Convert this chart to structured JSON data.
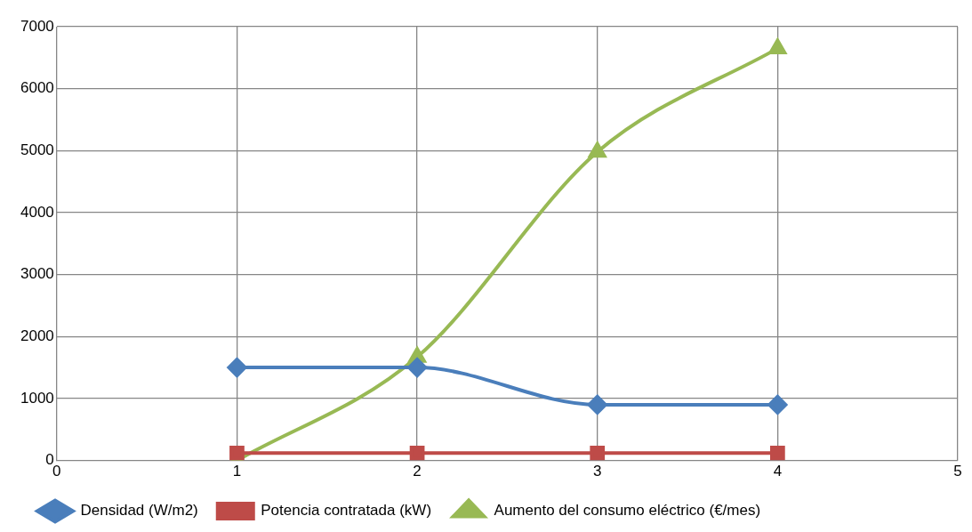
{
  "chart_data": {
    "type": "line",
    "x": [
      1,
      2,
      3,
      4
    ],
    "series": [
      {
        "name": "Densidad (W/m2)",
        "color": "#4a7ebb",
        "marker": "diamond",
        "values": [
          1500,
          1500,
          900,
          900
        ]
      },
      {
        "name": "Potencia contratada (kW)",
        "color": "#be4b48",
        "marker": "square",
        "values": [
          120,
          120,
          120,
          120
        ]
      },
      {
        "name": "Aumento del consumo eléctrico (€/mes)",
        "color": "#98b954",
        "marker": "triangle",
        "values": [
          0,
          1670,
          4980,
          6650
        ]
      }
    ],
    "xlim": [
      0,
      5
    ],
    "xticks": [
      0,
      1,
      2,
      3,
      4,
      5
    ],
    "ylim": [
      0,
      7000
    ],
    "yticks": [
      0,
      1000,
      2000,
      3000,
      4000,
      5000,
      6000,
      7000
    ],
    "grid": true,
    "legend": "bottom"
  }
}
